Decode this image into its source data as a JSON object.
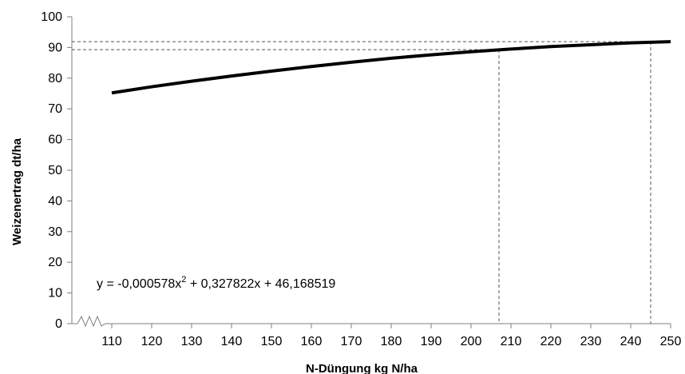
{
  "chart_data": {
    "type": "line",
    "title": "",
    "xlabel": "N-Düngung kg N/ha",
    "ylabel": "Weizenertrag dt/ha",
    "x_ticks": [
      110,
      120,
      130,
      140,
      150,
      160,
      170,
      180,
      190,
      200,
      210,
      220,
      230,
      240,
      250
    ],
    "y_ticks": [
      0,
      10,
      20,
      30,
      40,
      50,
      60,
      70,
      80,
      90,
      100
    ],
    "xlim": [
      100,
      250
    ],
    "ylim": [
      0,
      100
    ],
    "x_axis_break": true,
    "grid": false,
    "series": [
      {
        "equation": {
          "prefix": "y = -0,000578x",
          "exponent": "2",
          "suffix": " + 0,327822x + 46,168519"
        },
        "coefficients": {
          "a": -0.000578,
          "b": 0.327822,
          "c": 46.168519
        },
        "x": [
          110,
          120,
          130,
          140,
          150,
          160,
          170,
          180,
          190,
          200,
          210,
          220,
          230,
          240,
          250
        ],
        "y": [
          75.2,
          77.2,
          79.0,
          80.7,
          82.3,
          83.8,
          85.2,
          86.5,
          87.6,
          88.6,
          89.5,
          90.3,
          90.9,
          91.5,
          91.9
        ],
        "color": "#000000"
      }
    ],
    "reference_lines": [
      {
        "x": 207,
        "y": 89.3
      },
      {
        "x": 245,
        "y": 91.9
      }
    ]
  }
}
